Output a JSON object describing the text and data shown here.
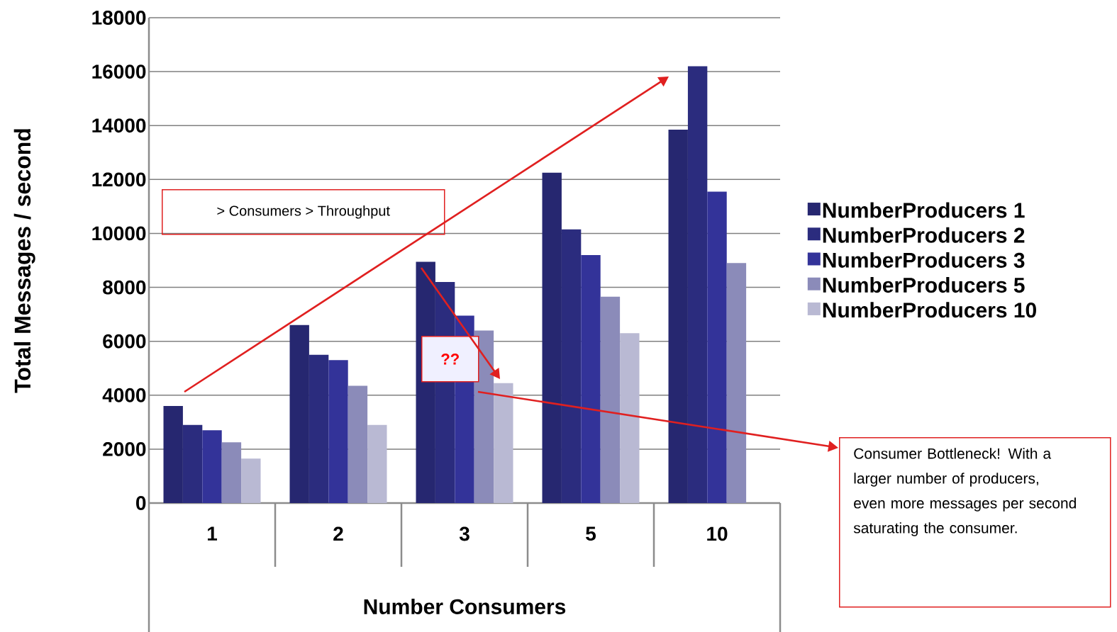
{
  "chart_data": {
    "type": "bar",
    "xlabel": "Number Consumers",
    "ylabel": "Total Messages / second",
    "categories": [
      "1",
      "2",
      "3",
      "5",
      "10"
    ],
    "series": [
      {
        "name": "NumberProducers 1",
        "color": "#262770",
        "values": [
          3600,
          6600,
          8950,
          12250,
          13850
        ]
      },
      {
        "name": "NumberProducers 2",
        "color": "#2b2c7e",
        "values": [
          2900,
          5500,
          8200,
          10150,
          16200
        ]
      },
      {
        "name": "NumberProducers 3",
        "color": "#333399",
        "values": [
          2700,
          5300,
          6950,
          9200,
          11550
        ]
      },
      {
        "name": "NumberProducers 5",
        "color": "#8b8bb9",
        "values": [
          2250,
          4350,
          6400,
          7650,
          8900
        ]
      },
      {
        "name": "NumberProducers 10",
        "color": "#b9b9d3",
        "values": [
          1650,
          2900,
          4450,
          6300,
          null
        ]
      }
    ],
    "ylim": [
      0,
      18000
    ],
    "yticks": [
      0,
      2000,
      4000,
      6000,
      8000,
      10000,
      12000,
      14000,
      16000,
      18000
    ],
    "grid": "y",
    "legend": "right",
    "annotations": [
      "> Consumers > Throughput",
      "??",
      "Consumer Bottleneck! With a larger number of producers, even more messages per second saturating the consumer."
    ]
  }
}
